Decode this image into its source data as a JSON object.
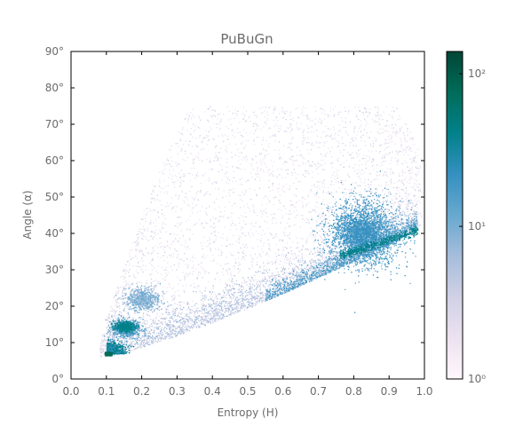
{
  "chart_data": {
    "type": "heatmap",
    "title": "PuBuGn",
    "xlabel": "Entropy (H)",
    "ylabel": "Angle (α)",
    "xlim": [
      0,
      1
    ],
    "ylim": [
      0,
      90
    ],
    "x_ticks": [
      "0.0",
      "0.1",
      "0.2",
      "0.3",
      "0.4",
      "0.5",
      "0.6",
      "0.7",
      "0.8",
      "0.9",
      "1.0"
    ],
    "y_ticks": [
      "0°",
      "10°",
      "20°",
      "30°",
      "40°",
      "50°",
      "60°",
      "70°",
      "80°",
      "90°"
    ],
    "x_tick_values": [
      0,
      0.1,
      0.2,
      0.3,
      0.4,
      0.5,
      0.6,
      0.7,
      0.8,
      0.9,
      1.0
    ],
    "y_tick_values": [
      0,
      10,
      20,
      30,
      40,
      50,
      60,
      70,
      80,
      90
    ],
    "colormap": "PuBuGn",
    "color_scale": "log",
    "colorbar": {
      "range": [
        1,
        140
      ],
      "ticks": [
        "10⁰",
        "10¹",
        "10²"
      ],
      "tick_values": [
        1,
        10,
        100
      ]
    },
    "density_features": [
      {
        "name": "feasible-boundary curve",
        "points": [
          [
            0.08,
            6
          ],
          [
            0.2,
            11
          ],
          [
            0.4,
            17
          ],
          [
            0.6,
            25
          ],
          [
            0.8,
            33
          ],
          [
            0.98,
            41
          ]
        ]
      },
      {
        "name": "low-entropy cluster",
        "x": 0.1,
        "y": 7
      },
      {
        "name": "cluster",
        "x": 0.15,
        "y": 14
      },
      {
        "name": "cluster",
        "x": 0.2,
        "y": 22
      },
      {
        "name": "high-entropy cluster",
        "x": 0.83,
        "y": 40
      },
      {
        "name": "dense ridge",
        "points": [
          [
            0.75,
            34
          ],
          [
            0.9,
            37
          ],
          [
            0.98,
            41
          ]
        ]
      }
    ],
    "colors": [
      "#fff7fb",
      "#ece2f0",
      "#d0d1e6",
      "#a6bddb",
      "#67a9cf",
      "#3690c0",
      "#02818a",
      "#016c59",
      "#014636"
    ]
  }
}
